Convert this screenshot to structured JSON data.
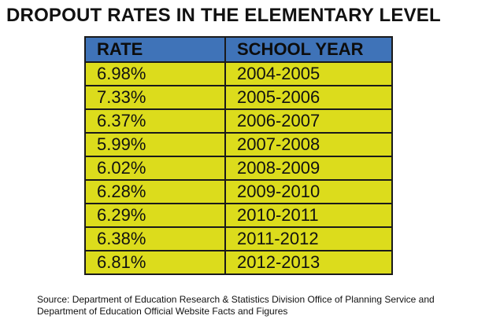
{
  "chart_data": {
    "type": "table",
    "title": "DROPOUT RATES IN THE ELEMENTARY LEVEL",
    "columns": [
      "RATE",
      "SCHOOL YEAR"
    ],
    "rows": [
      [
        "6.98%",
        "2004-2005"
      ],
      [
        "7.33%",
        "2005-2006"
      ],
      [
        "6.37%",
        "2006-2007"
      ],
      [
        "5.99%",
        "2007-2008"
      ],
      [
        "6.02%",
        "2008-2009"
      ],
      [
        "6.28%",
        "2009-2010"
      ],
      [
        "6.29%",
        "2010-2011"
      ],
      [
        "6.38%",
        "2011-2012"
      ],
      [
        "6.81%",
        "2012-2013"
      ]
    ],
    "source": [
      "Source: Department of Education Research & Statistics Division Office of Planning Service and",
      "Department of Education Official Website Facts and Figures"
    ]
  },
  "colors": {
    "header_bg": "#3f73b8",
    "cell_bg": "#dcdc1c",
    "border": "#1a1a1a"
  }
}
